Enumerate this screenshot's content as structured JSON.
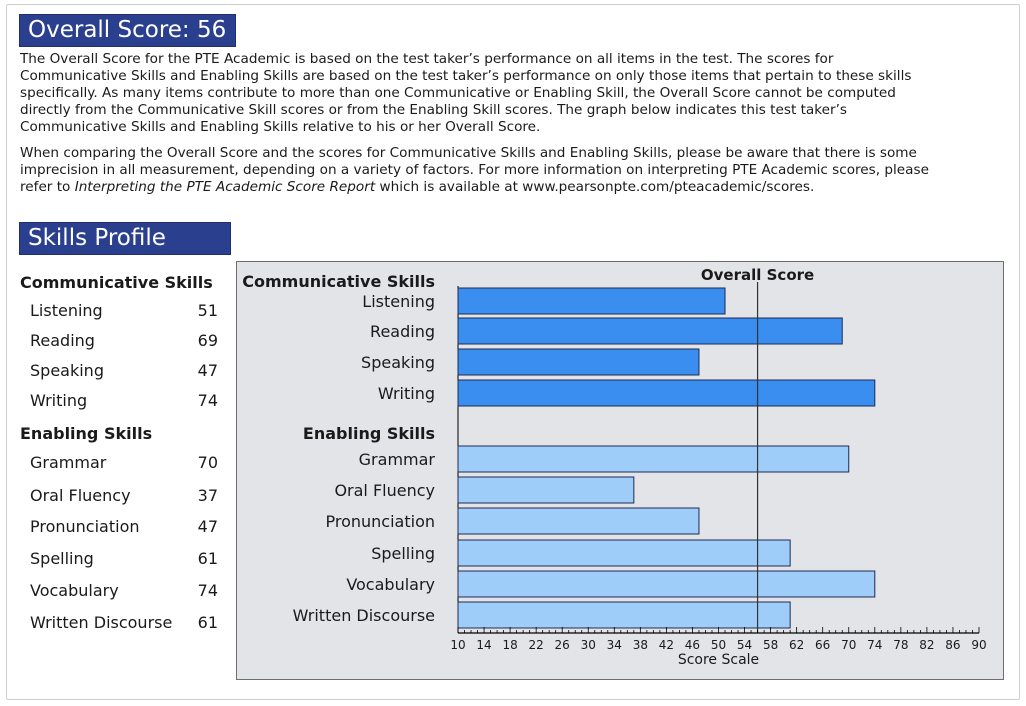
{
  "header": {
    "overall_banner": "Overall Score: 56",
    "skills_banner": "Skills Profile"
  },
  "paragraphs": {
    "p1": "The Overall Score for the PTE Academic is based on the test taker’s performance on all items in the test.  The scores for Communicative Skills and Enabling Skills are based on the test taker’s performance on only those items that pertain to these skills specifically.  As many items contribute to more than one Communicative or Enabling Skill, the Overall Score cannot be computed directly from the Communicative Skill scores or from the Enabling Skill scores.  The graph below indicates this test taker’s Communicative Skills and Enabling Skills relative to his or her Overall Score.",
    "p2_before": "When comparing the Overall Score and the scores for Communicative Skills and Enabling Skills, please be aware that there is some imprecision in all measurement, depending on a variety of factors.  For more information on interpreting PTE Academic scores, please refer to ",
    "p2_italic": "Interpreting the PTE Academic Score Report",
    "p2_after": " which is available at www.pearsonpte.com/pteacademic/scores."
  },
  "score_table": {
    "groups": [
      {
        "heading": "Communicative Skills",
        "items": [
          {
            "name": "Listening",
            "score": "51"
          },
          {
            "name": "Reading",
            "score": "69"
          },
          {
            "name": "Speaking",
            "score": "47"
          },
          {
            "name": "Writing",
            "score": "74"
          }
        ]
      },
      {
        "heading": "Enabling Skills",
        "items": [
          {
            "name": "Grammar",
            "score": "70"
          },
          {
            "name": "Oral Fluency",
            "score": "37"
          },
          {
            "name": "Pronunciation",
            "score": "47"
          },
          {
            "name": "Spelling",
            "score": "61"
          },
          {
            "name": "Vocabulary",
            "score": "74"
          },
          {
            "name": "Written Discourse",
            "score": "61"
          }
        ]
      }
    ]
  },
  "chart_data": {
    "type": "bar",
    "orientation": "horizontal",
    "overall_label": "Overall Score",
    "overall_value": 56,
    "xlabel": "Score Scale",
    "xlim": [
      10,
      90
    ],
    "xticks": [
      10,
      14,
      18,
      22,
      26,
      30,
      34,
      38,
      42,
      46,
      50,
      54,
      58,
      62,
      66,
      70,
      74,
      78,
      82,
      86,
      90
    ],
    "groups": [
      {
        "heading": "Communicative Skills",
        "color": "#3a8ef0",
        "categories": [
          "Listening",
          "Reading",
          "Speaking",
          "Writing"
        ],
        "values": [
          51,
          69,
          47,
          74
        ]
      },
      {
        "heading": "Enabling Skills",
        "color": "#9fcdf9",
        "categories": [
          "Grammar",
          "Oral Fluency",
          "Pronunciation",
          "Spelling",
          "Vocabulary",
          "Written Discourse"
        ],
        "values": [
          70,
          37,
          47,
          61,
          74,
          61
        ]
      }
    ],
    "background": "#e3e4e8",
    "bar_outline": "#1c2a55"
  }
}
